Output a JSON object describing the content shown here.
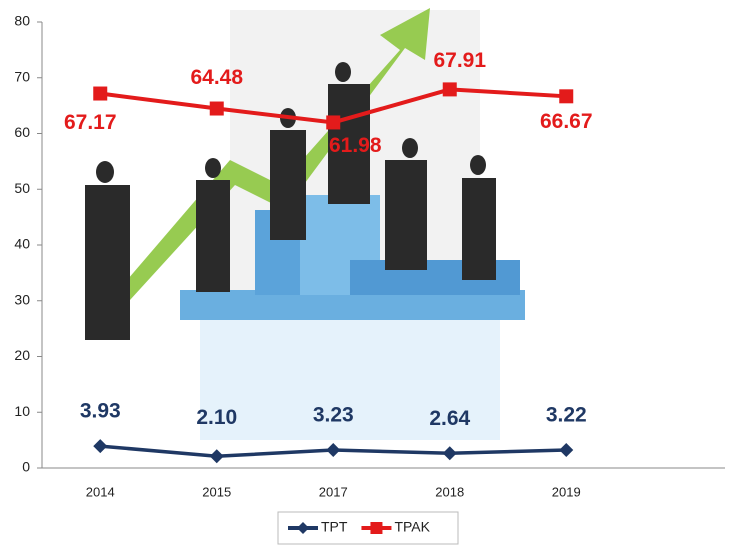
{
  "chart_data": {
    "type": "line",
    "categories": [
      "2014",
      "2015",
      "2017",
      "2018",
      "2019"
    ],
    "series": [
      {
        "name": "TPT",
        "color": "#1f3864",
        "marker": "diamond",
        "values": [
          3.93,
          2.1,
          3.23,
          2.64,
          3.22
        ],
        "value_labels": [
          "3.93",
          "2.10",
          "3.23",
          "2.64",
          "3.22"
        ]
      },
      {
        "name": "TPAK",
        "color": "#e31b1b",
        "marker": "square",
        "values": [
          67.17,
          64.48,
          61.98,
          67.91,
          66.67
        ],
        "value_labels": [
          "67.17",
          "64.48",
          "61.98",
          "67.91",
          "66.67"
        ]
      }
    ],
    "ylim": [
      0,
      80
    ],
    "yticks": [
      0,
      10,
      20,
      30,
      40,
      50,
      60,
      70,
      80
    ],
    "legend": "bottom"
  }
}
